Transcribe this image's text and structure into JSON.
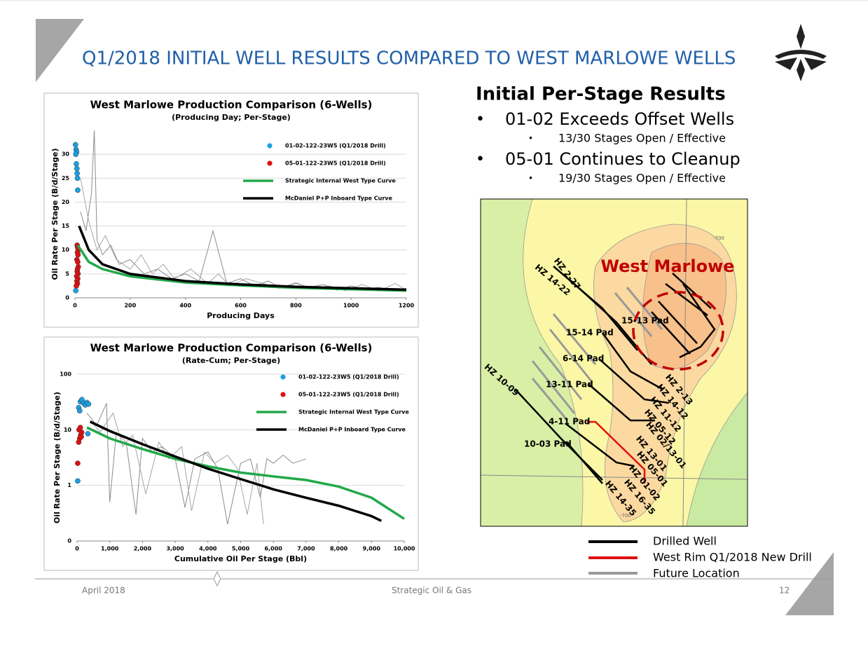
{
  "header": {
    "title": "Q1/2018 INITIAL WELL RESULTS COMPARED TO WEST MARLOWE WELLS"
  },
  "results": {
    "heading": "Initial Per-Stage Results",
    "bullet": "•",
    "items": [
      {
        "text": "01-02 Exceeds Offset Wells",
        "detail": "13/30 Stages Open / Effective"
      },
      {
        "text": "05-01 Continues to Cleanup",
        "detail": "19/30 Stages Open / Effective"
      }
    ]
  },
  "chart_data": [
    {
      "type": "line",
      "title": "West Marlowe Production Comparison (6-Wells)",
      "subtitle": "(Producing Day; Per-Stage)",
      "xlabel": "Producing Days",
      "ylabel": "Oil Rate Per Stage (B/d/Stage)",
      "xlim": [
        0,
        1200
      ],
      "xticks": [
        0,
        200,
        400,
        600,
        800,
        1000,
        1200
      ],
      "ylim": [
        0,
        35
      ],
      "yticks": [
        0,
        5,
        10,
        15,
        20,
        25,
        30
      ],
      "grid": true,
      "legend": "upper right",
      "series": [
        {
          "color": "#8c8c8c",
          "style": "line",
          "x": [
            20,
            40,
            60,
            70,
            80,
            100,
            130,
            160,
            200,
            250,
            300,
            350,
            400,
            450,
            500,
            550,
            600,
            650,
            700,
            750,
            800,
            850,
            900,
            950,
            1000,
            1050,
            1100,
            1150,
            1200
          ],
          "values": [
            18,
            14,
            22,
            35,
            12,
            9,
            11,
            7,
            8,
            5,
            6,
            4,
            5,
            3.5,
            14,
            3,
            4,
            2.5,
            3.5,
            2,
            3,
            2.2,
            2.8,
            1.6,
            2.5,
            1.8,
            2.2,
            1.5,
            2
          ]
        },
        {
          "color": "#a6a6a6",
          "style": "line",
          "x": [
            20,
            50,
            80,
            110,
            150,
            200,
            240,
            280,
            320,
            360,
            420,
            480,
            520,
            560,
            620,
            680,
            740,
            800,
            860,
            920,
            980,
            1040,
            1100,
            1160,
            1200
          ],
          "values": [
            25,
            16,
            10,
            13,
            8,
            6,
            9,
            5,
            7,
            4,
            6,
            3,
            5,
            2.5,
            4,
            3,
            2,
            3.2,
            1.8,
            2.5,
            1.5,
            2.8,
            1.4,
            3,
            1.6
          ]
        },
        {
          "name": "01-02-122-23W5 (Q1/2018 Drill)",
          "color": "#1ba1e2",
          "style": "scatter",
          "x": [
            2,
            4,
            6,
            3,
            5,
            7,
            8,
            9,
            10,
            3
          ],
          "values": [
            32,
            31,
            30.5,
            30,
            28,
            27,
            26,
            25,
            22.5,
            1.5
          ]
        },
        {
          "name": "05-01-122-23W5 (Q1/2018 Drill)",
          "color": "#e01010",
          "style": "scatter",
          "x": [
            8,
            10,
            12,
            9,
            11,
            7,
            10,
            12,
            9,
            8,
            11,
            6,
            10,
            7,
            9,
            5
          ],
          "values": [
            11,
            10.5,
            10,
            9.5,
            9,
            8,
            7.5,
            6.5,
            6,
            5.5,
            5,
            4.5,
            4,
            3.5,
            3,
            2.5
          ]
        },
        {
          "name": "Strategic Internal West Type Curve",
          "color": "#22a84a",
          "style": "line",
          "x": [
            10,
            50,
            100,
            200,
            400,
            600,
            800,
            1000,
            1200
          ],
          "values": [
            11,
            7.5,
            6,
            4.5,
            3.2,
            2.6,
            2.1,
            1.8,
            1.5
          ]
        },
        {
          "name": "McDaniel P+P Inboard Type Curve",
          "color": "#000000",
          "style": "line",
          "x": [
            15,
            50,
            100,
            200,
            400,
            600,
            800,
            1000,
            1200
          ],
          "values": [
            15,
            10,
            7,
            5,
            3.5,
            2.8,
            2.3,
            2,
            1.7
          ]
        }
      ]
    },
    {
      "type": "line",
      "title": "West Marlowe Production Comparison (6-Wells)",
      "subtitle": "(Rate-Cum; Per-Stage)",
      "xlabel": "Cumulative Oil Per Stage (Bbl)",
      "ylabel": "Oil Rate Per Stage (B/d/Stage)",
      "xlim": [
        0,
        10000
      ],
      "xticks": [
        0,
        {
          "value": 1000,
          "label": "1,000"
        },
        {
          "value": 2000,
          "label": "2,000"
        },
        {
          "value": 3000,
          "label": "3,000"
        },
        {
          "value": 4000,
          "label": "4,000"
        },
        {
          "value": 5000,
          "label": "5,000"
        },
        {
          "value": 6000,
          "label": "6,000"
        },
        {
          "value": 7000,
          "label": "7,000"
        },
        {
          "value": 8000,
          "label": "8,000"
        },
        {
          "value": 9000,
          "label": "9,000"
        },
        {
          "value": 10000,
          "label": "10,000"
        }
      ],
      "ylim": [
        0.1,
        100
      ],
      "yticks": [
        {
          "value": 0.1,
          "label": "0"
        },
        1,
        10,
        100
      ],
      "ylog": true,
      "grid": true,
      "legend": "upper right",
      "series": [
        {
          "color": "#8c8c8c",
          "style": "line",
          "x": [
            300,
            600,
            900,
            1000,
            1200,
            1500,
            1800,
            2000,
            2300,
            2600,
            3000,
            3300,
            3600,
            4000,
            4300,
            4600,
            5000,
            5300,
            5600,
            5800,
            6000,
            6300,
            6600,
            7000
          ],
          "values": [
            20,
            12,
            30,
            0.5,
            9,
            6,
            0.3,
            7,
            4,
            5,
            3,
            0.4,
            3,
            4,
            2,
            0.2,
            2.5,
            3,
            0.6,
            3,
            2.5,
            3.5,
            2.5,
            3
          ]
        },
        {
          "color": "#a6a6a6",
          "style": "line",
          "x": [
            400,
            700,
            1100,
            1400,
            1700,
            2100,
            2500,
            2800,
            3200,
            3500,
            3900,
            4200,
            4600,
            4900,
            5200,
            5500,
            5700
          ],
          "values": [
            15,
            9,
            20,
            5,
            8,
            0.7,
            6,
            3,
            5,
            0.35,
            4,
            2.5,
            3.5,
            2,
            0.3,
            2.5,
            0.2
          ]
        },
        {
          "name": "01-02-122-23W5 (Q1/2018 Drill)",
          "color": "#1ba1e2",
          "style": "scatter",
          "x": [
            50,
            100,
            150,
            200,
            250,
            300,
            350,
            80,
            330,
            20
          ],
          "values": [
            25,
            32,
            35,
            30,
            28,
            31,
            29,
            22,
            8.5,
            1.2
          ]
        },
        {
          "name": "05-01-122-23W5 (Q1/2018 Drill)",
          "color": "#e01010",
          "style": "scatter",
          "x": [
            20,
            50,
            80,
            110,
            140,
            60,
            100,
            130
          ],
          "values": [
            2.5,
            6,
            7,
            8,
            9,
            10,
            11,
            7.5
          ]
        },
        {
          "name": "Strategic Internal West Type Curve",
          "color": "#22a84a",
          "style": "line",
          "x": [
            300,
            1000,
            2000,
            3000,
            4000,
            5000,
            6000,
            7000,
            8000,
            9000,
            10000
          ],
          "values": [
            11,
            7,
            4.5,
            3,
            2.2,
            1.7,
            1.45,
            1.25,
            0.95,
            0.6,
            0.25
          ]
        },
        {
          "name": "McDaniel P+P Inboard Type Curve",
          "color": "#000000",
          "style": "line",
          "x": [
            400,
            1000,
            2000,
            3000,
            4000,
            5000,
            6000,
            7000,
            8000,
            9000,
            9300
          ],
          "values": [
            14,
            9.5,
            5.5,
            3.3,
            2,
            1.3,
            0.85,
            0.6,
            0.43,
            0.28,
            0.23
          ]
        }
      ]
    }
  ],
  "map": {
    "title": "West Marlowe",
    "labels": [
      "HZ 2-27",
      "HZ 14-22",
      "15-13 Pad",
      "15-14 Pad",
      "6-14 Pad",
      "13-11 Pad",
      "4-11 Pad",
      "10-03 Pad",
      "HZ 10-09",
      "HZ 2-13",
      "HZ 14-12",
      "HZ 11-12",
      "HZ 05-12",
      "HZ 02/13-01",
      "HZ 13-01",
      "HZ 05-01",
      "HZ 01-02",
      "HZ 16-35",
      "HZ 14-35"
    ],
    "contours": [
      "-700",
      "-700"
    ],
    "legend": [
      "Drilled Well",
      "West Rim Q1/2018 New Drill",
      "Future Location"
    ]
  },
  "footer": {
    "date": "April  2018",
    "company": "Strategic Oil & Gas",
    "page": "12"
  }
}
